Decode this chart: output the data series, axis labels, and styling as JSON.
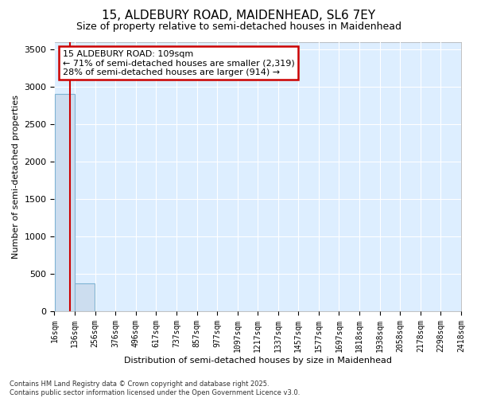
{
  "title1": "15, ALDEBURY ROAD, MAIDENHEAD, SL6 7EY",
  "title2": "Size of property relative to semi-detached houses in Maidenhead",
  "xlabel": "Distribution of semi-detached houses by size in Maidenhead",
  "ylabel": "Number of semi-detached properties",
  "annotation_title": "15 ALDEBURY ROAD: 109sqm",
  "annotation_line1": "← 71% of semi-detached houses are smaller (2,319)",
  "annotation_line2": "28% of semi-detached houses are larger (914) →",
  "footer1": "Contains HM Land Registry data © Crown copyright and database right 2025.",
  "footer2": "Contains public sector information licensed under the Open Government Licence v3.0.",
  "bin_edges": [
    16,
    136,
    256,
    376,
    496,
    617,
    737,
    857,
    977,
    1097,
    1217,
    1337,
    1457,
    1577,
    1697,
    1818,
    1938,
    2058,
    2178,
    2298,
    2418
  ],
  "bar_heights": [
    2900,
    370,
    5,
    1,
    0,
    0,
    0,
    0,
    0,
    0,
    0,
    0,
    0,
    0,
    0,
    0,
    0,
    0,
    0,
    0
  ],
  "bar_color": "#ccddef",
  "bar_edge_color": "#7fb3d3",
  "vline_color": "#cc0000",
  "vline_x": 109,
  "ylim": [
    0,
    3600
  ],
  "yticks": [
    0,
    500,
    1000,
    1500,
    2000,
    2500,
    3000,
    3500
  ],
  "plot_bg_color": "#ddeeff",
  "fig_bg_color": "#ffffff",
  "grid_color": "#ffffff",
  "annotation_box_facecolor": "#ffffff",
  "annotation_box_edgecolor": "#cc0000",
  "title1_fontsize": 11,
  "title2_fontsize": 9,
  "ylabel_fontsize": 8,
  "xlabel_fontsize": 8,
  "ytick_fontsize": 8,
  "xtick_fontsize": 7,
  "footer_fontsize": 6
}
